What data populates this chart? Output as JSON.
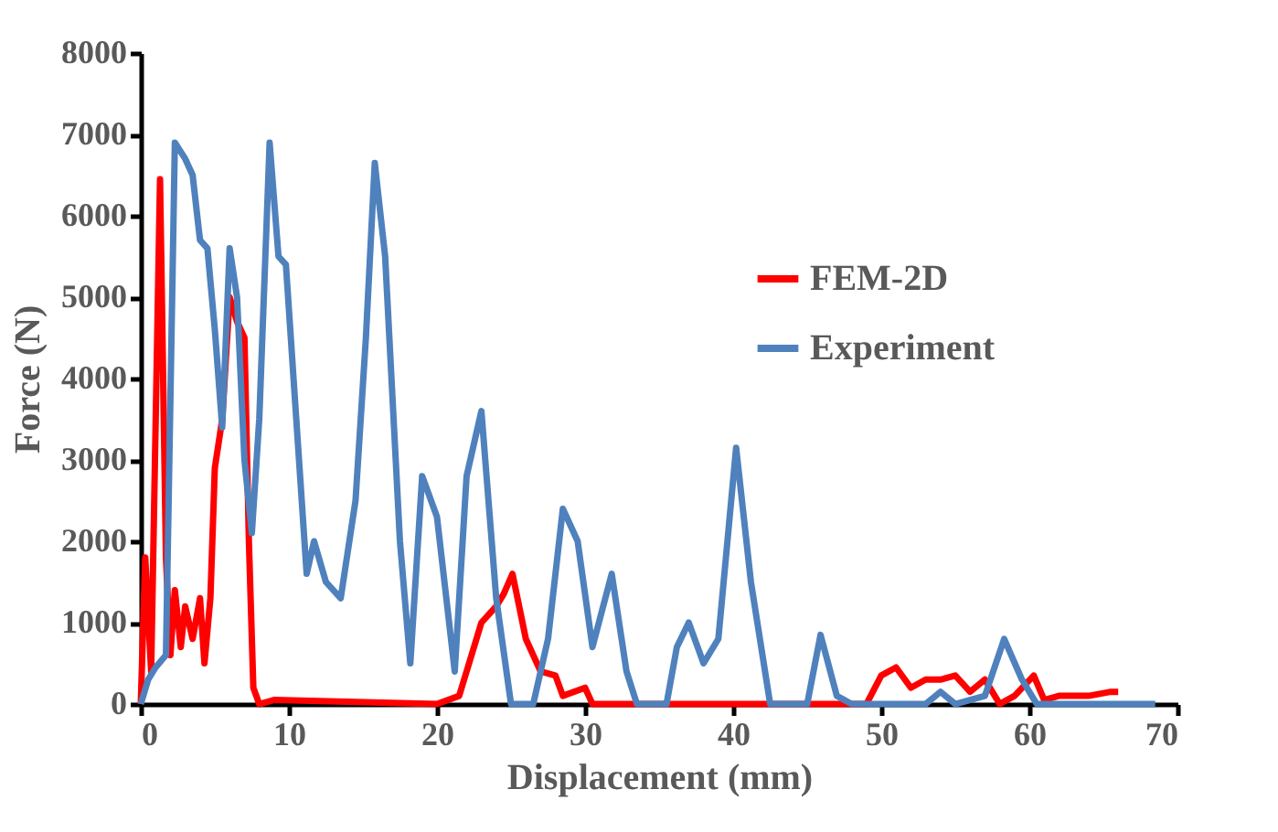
{
  "chart_data": {
    "type": "line",
    "xlabel": "Displacement (mm)",
    "ylabel": "Force (N)",
    "xlim": [
      0,
      70
    ],
    "xticks": [
      0,
      10,
      20,
      30,
      40,
      50,
      60,
      70
    ],
    "ylim": [
      0,
      8000
    ],
    "yticks": [
      0,
      1000,
      2000,
      3000,
      4000,
      5000,
      6000,
      7000,
      8000
    ],
    "grid": false,
    "legend": "top right",
    "marker": "none",
    "line_style": "solid",
    "series": [
      {
        "name": "FEM-2D",
        "color": "#ff0000",
        "x": [
          0,
          0.3,
          0.7,
          1.3,
          1.7,
          2,
          2.3,
          2.7,
          3,
          3.5,
          4,
          4.3,
          4.7,
          5,
          5.5,
          6,
          6.5,
          7,
          7.3,
          7.6,
          8,
          9,
          20,
          21.5,
          22.5,
          23,
          24,
          24.5,
          25.1,
          26,
          27,
          28,
          28.5,
          30,
          30.5,
          49,
          50,
          51,
          52,
          53,
          54,
          55,
          56,
          57,
          58,
          59,
          60.3,
          61,
          62,
          64,
          65.5,
          66
        ],
        "values": [
          0,
          1800,
          400,
          6450,
          1800,
          600,
          1400,
          700,
          1200,
          800,
          1300,
          500,
          1300,
          2900,
          3500,
          5000,
          4700,
          4500,
          2000,
          200,
          0,
          50,
          0,
          100,
          700,
          1000,
          1200,
          1350,
          1600,
          800,
          400,
          350,
          100,
          200,
          0,
          0,
          350,
          450,
          200,
          300,
          300,
          350,
          150,
          300,
          0,
          100,
          350,
          50,
          100,
          100,
          150,
          150
        ]
      },
      {
        "name": "Experiment",
        "color": "#4f81bd",
        "x": [
          0,
          0.5,
          1,
          1.7,
          2.3,
          3,
          3.5,
          4,
          4.5,
          5,
          5.5,
          6,
          6.5,
          7,
          7.5,
          8,
          8.7,
          9.3,
          9.8,
          10.5,
          11.2,
          11.7,
          12.5,
          13.5,
          14.5,
          15.2,
          15.8,
          16.5,
          17.5,
          18.2,
          19,
          20,
          21.2,
          22,
          23,
          24,
          25,
          26.5,
          27.5,
          28.5,
          29.5,
          30.5,
          31.8,
          32.8,
          33.5,
          35.5,
          36.2,
          37,
          38,
          39,
          40.2,
          41.2,
          42.5,
          45,
          45.9,
          47,
          48,
          53,
          54,
          55,
          57,
          58.3,
          59.5,
          60.5,
          68.5
        ],
        "values": [
          0,
          300,
          450,
          600,
          6900,
          6700,
          6500,
          5700,
          5600,
          4600,
          3400,
          5600,
          5000,
          3000,
          2100,
          3500,
          6900,
          5500,
          5400,
          3500,
          1600,
          2000,
          1500,
          1300,
          2500,
          4500,
          6650,
          5500,
          2000,
          500,
          2800,
          2300,
          400,
          2800,
          3600,
          1300,
          0,
          0,
          800,
          2400,
          2000,
          700,
          1600,
          400,
          0,
          0,
          700,
          1000,
          500,
          800,
          3150,
          1500,
          0,
          0,
          850,
          100,
          0,
          0,
          150,
          0,
          100,
          800,
          300,
          0,
          0
        ]
      }
    ]
  }
}
